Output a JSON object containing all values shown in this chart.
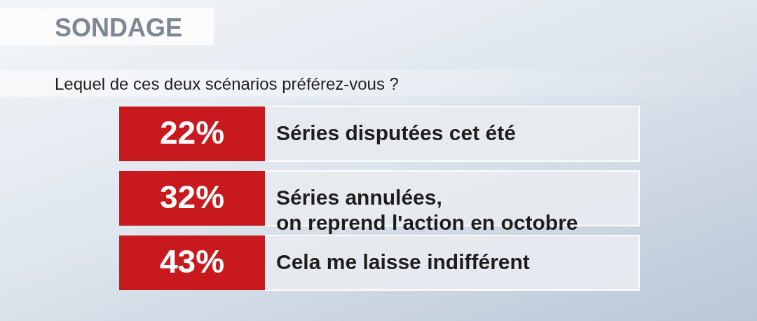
{
  "chart_data": {
    "type": "other",
    "title": "SONDAGE",
    "subtitle": "Lequel de ces deux scénarios préférez-vous ?",
    "categories": [
      "Séries disputées cet été",
      "Séries annulées, on reprend l'action en octobre",
      "Cela me laisse indifférent"
    ],
    "values": [
      22,
      32,
      43
    ],
    "value_labels": [
      "22%",
      "32%",
      "43%"
    ],
    "color": "#c8191f"
  }
}
